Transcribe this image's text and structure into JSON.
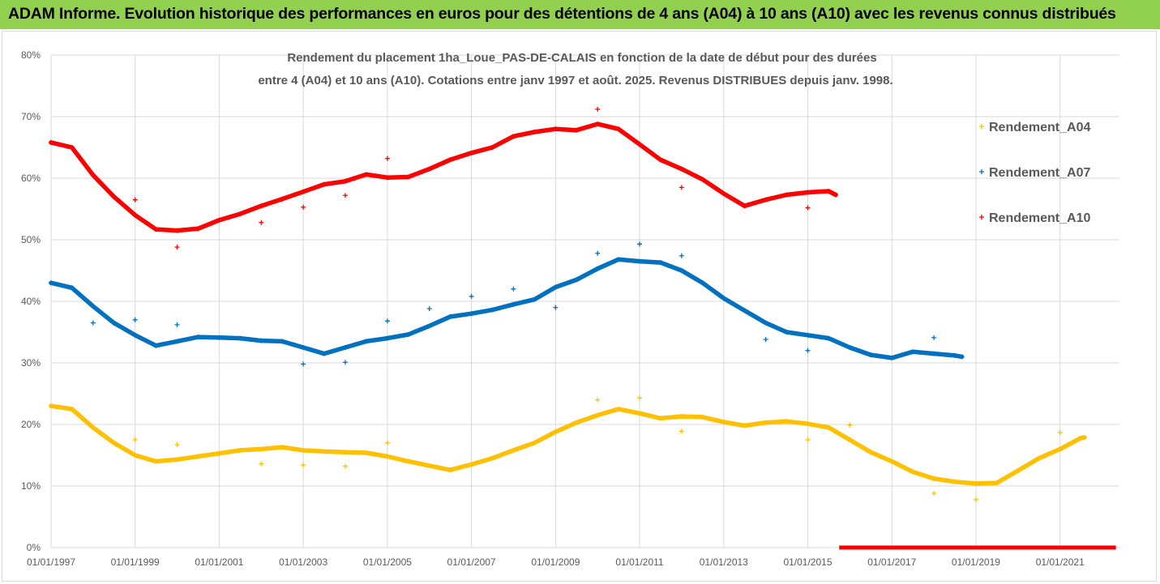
{
  "header": {
    "title": "ADAM Informe. Evolution historique des performances en euros pour des détentions de 4 ans (A04) à 10 ans (A10) avec les revenus connus distribués"
  },
  "chart_data": {
    "type": "scatter",
    "title_lines": [
      "Rendement du placement 1ha_Loue_PAS-DE-CALAIS en fonction de la date de début pour des durées",
      "entre 4 (A04) et 10 ans (A10). Cotations entre janv 1997 et août. 2025. Revenus DISTRIBUES depuis janv. 1998."
    ],
    "xlabel": "",
    "ylabel": "",
    "x_start": "1997-01-01",
    "x_end": "2022-06-01",
    "xticks": [
      "01/01/1997",
      "01/01/1999",
      "01/01/2001",
      "01/01/2003",
      "01/01/2005",
      "01/01/2007",
      "01/01/2009",
      "01/01/2011",
      "01/01/2013",
      "01/01/2015",
      "01/01/2017",
      "01/01/2019",
      "01/01/2021"
    ],
    "yticks": [
      "0%",
      "10%",
      "20%",
      "30%",
      "40%",
      "50%",
      "60%",
      "70%",
      "80%"
    ],
    "ylim": [
      0,
      80
    ],
    "grid": true,
    "legend_position": "right",
    "series": [
      {
        "name": "Rendement_A04",
        "color": "#ffc000",
        "points": [
          [
            "1997-01",
            23
          ],
          [
            "1997-07",
            22.5
          ],
          [
            "1998-01",
            19.5
          ],
          [
            "1998-07",
            17
          ],
          [
            "1999-01",
            15
          ],
          [
            "1999-07",
            14
          ],
          [
            "2000-01",
            14.3
          ],
          [
            "2000-07",
            14.8
          ],
          [
            "2001-01",
            15.3
          ],
          [
            "2001-07",
            15.8
          ],
          [
            "2002-01",
            16
          ],
          [
            "2002-07",
            16.3
          ],
          [
            "2003-01",
            15.8
          ],
          [
            "2003-07",
            15.6
          ],
          [
            "2004-01",
            15.5
          ],
          [
            "2004-07",
            15.4
          ],
          [
            "2005-01",
            14.8
          ],
          [
            "2005-07",
            14
          ],
          [
            "2006-01",
            13.3
          ],
          [
            "2006-07",
            12.6
          ],
          [
            "2007-01",
            13.5
          ],
          [
            "2007-07",
            14.5
          ],
          [
            "2008-01",
            15.8
          ],
          [
            "2008-07",
            17
          ],
          [
            "2009-01",
            18.8
          ],
          [
            "2009-07",
            20.3
          ],
          [
            "2010-01",
            21.5
          ],
          [
            "2010-07",
            22.5
          ],
          [
            "2011-01",
            21.8
          ],
          [
            "2011-07",
            21
          ],
          [
            "2012-01",
            21.3
          ],
          [
            "2012-07",
            21.2
          ],
          [
            "2013-01",
            20.4
          ],
          [
            "2013-07",
            19.8
          ],
          [
            "2014-01",
            20.3
          ],
          [
            "2014-07",
            20.5
          ],
          [
            "2015-01",
            20.1
          ],
          [
            "2015-07",
            19.5
          ],
          [
            "2016-01",
            17.5
          ],
          [
            "2016-07",
            15.5
          ],
          [
            "2017-01",
            14
          ],
          [
            "2017-07",
            12.3
          ],
          [
            "2018-01",
            11.2
          ],
          [
            "2018-07",
            10.7
          ],
          [
            "2019-01",
            10.4
          ],
          [
            "2019-07",
            10.5
          ],
          [
            "2020-01",
            12.5
          ],
          [
            "2020-07",
            14.5
          ],
          [
            "2021-01",
            16
          ],
          [
            "2021-07",
            17.8
          ],
          [
            "2021-08",
            17.9
          ]
        ],
        "outliers": [
          [
            "1999-01",
            17.5
          ],
          [
            "2000-01",
            16.7
          ],
          [
            "2002-01",
            13.6
          ],
          [
            "2003-01",
            13.4
          ],
          [
            "2004-01",
            13.2
          ],
          [
            "2005-01",
            17
          ],
          [
            "2010-01",
            24
          ],
          [
            "2011-01",
            24.3
          ],
          [
            "2012-01",
            18.9
          ],
          [
            "2015-01",
            17.5
          ],
          [
            "2016-01",
            19.9
          ],
          [
            "2018-01",
            8.8
          ],
          [
            "2019-01",
            7.8
          ],
          [
            "2021-01",
            18.7
          ]
        ]
      },
      {
        "name": "Rendement_A07",
        "color": "#0070c0",
        "points": [
          [
            "1997-01",
            43
          ],
          [
            "1997-07",
            42.2
          ],
          [
            "1998-01",
            39.2
          ],
          [
            "1998-07",
            36.5
          ],
          [
            "1999-01",
            34.5
          ],
          [
            "1999-07",
            32.8
          ],
          [
            "2000-01",
            33.5
          ],
          [
            "2000-07",
            34.2
          ],
          [
            "2001-01",
            34.1
          ],
          [
            "2001-07",
            34
          ],
          [
            "2002-01",
            33.6
          ],
          [
            "2002-07",
            33.5
          ],
          [
            "2003-01",
            32.5
          ],
          [
            "2003-07",
            31.5
          ],
          [
            "2004-01",
            32.5
          ],
          [
            "2004-07",
            33.5
          ],
          [
            "2005-01",
            34
          ],
          [
            "2005-07",
            34.6
          ],
          [
            "2006-01",
            36
          ],
          [
            "2006-07",
            37.5
          ],
          [
            "2007-01",
            38
          ],
          [
            "2007-07",
            38.6
          ],
          [
            "2008-01",
            39.5
          ],
          [
            "2008-07",
            40.3
          ],
          [
            "2009-01",
            42.3
          ],
          [
            "2009-07",
            43.5
          ],
          [
            "2010-01",
            45.3
          ],
          [
            "2010-07",
            46.8
          ],
          [
            "2011-01",
            46.5
          ],
          [
            "2011-07",
            46.3
          ],
          [
            "2012-01",
            45
          ],
          [
            "2012-07",
            43
          ],
          [
            "2013-01",
            40.5
          ],
          [
            "2013-07",
            38.5
          ],
          [
            "2014-01",
            36.5
          ],
          [
            "2014-07",
            35
          ],
          [
            "2015-01",
            34.5
          ],
          [
            "2015-07",
            34
          ],
          [
            "2016-01",
            32.5
          ],
          [
            "2016-07",
            31.3
          ],
          [
            "2017-01",
            30.8
          ],
          [
            "2017-07",
            31.8
          ],
          [
            "2018-01",
            31.5
          ],
          [
            "2018-07",
            31.2
          ],
          [
            "2018-09",
            31
          ]
        ],
        "outliers": [
          [
            "1998-01",
            36.5
          ],
          [
            "1999-01",
            37
          ],
          [
            "2000-01",
            36.2
          ],
          [
            "2003-01",
            29.8
          ],
          [
            "2004-01",
            30.1
          ],
          [
            "2005-01",
            36.8
          ],
          [
            "2006-01",
            38.8
          ],
          [
            "2007-01",
            40.8
          ],
          [
            "2008-01",
            42
          ],
          [
            "2009-01",
            39
          ],
          [
            "2010-01",
            47.8
          ],
          [
            "2011-01",
            49.3
          ],
          [
            "2012-01",
            47.4
          ],
          [
            "2014-01",
            33.8
          ],
          [
            "2015-01",
            32
          ],
          [
            "2018-01",
            34.1
          ]
        ]
      },
      {
        "name": "Rendement_A10",
        "color": "#ff0000",
        "points": [
          [
            "1997-01",
            65.8
          ],
          [
            "1997-07",
            65
          ],
          [
            "1998-01",
            60.5
          ],
          [
            "1998-07",
            57
          ],
          [
            "1999-01",
            54
          ],
          [
            "1999-07",
            51.7
          ],
          [
            "2000-01",
            51.5
          ],
          [
            "2000-07",
            51.8
          ],
          [
            "2001-01",
            53.2
          ],
          [
            "2001-07",
            54.2
          ],
          [
            "2002-01",
            55.5
          ],
          [
            "2002-07",
            56.6
          ],
          [
            "2003-01",
            57.8
          ],
          [
            "2003-07",
            59
          ],
          [
            "2004-01",
            59.5
          ],
          [
            "2004-07",
            60.6
          ],
          [
            "2005-01",
            60.1
          ],
          [
            "2005-07",
            60.2
          ],
          [
            "2006-01",
            61.5
          ],
          [
            "2006-07",
            63
          ],
          [
            "2007-01",
            64.1
          ],
          [
            "2007-07",
            65
          ],
          [
            "2008-01",
            66.8
          ],
          [
            "2008-07",
            67.5
          ],
          [
            "2009-01",
            68
          ],
          [
            "2009-07",
            67.8
          ],
          [
            "2010-01",
            68.8
          ],
          [
            "2010-07",
            68
          ],
          [
            "2011-01",
            65.5
          ],
          [
            "2011-07",
            63
          ],
          [
            "2012-01",
            61.5
          ],
          [
            "2012-07",
            59.8
          ],
          [
            "2013-01",
            57.5
          ],
          [
            "2013-07",
            55.5
          ],
          [
            "2014-01",
            56.5
          ],
          [
            "2014-07",
            57.3
          ],
          [
            "2015-01",
            57.7
          ],
          [
            "2015-07",
            57.9
          ],
          [
            "2015-09",
            57.3
          ]
        ],
        "outliers": [
          [
            "1999-01",
            56.5
          ],
          [
            "2000-01",
            48.8
          ],
          [
            "2002-01",
            52.8
          ],
          [
            "2003-01",
            55.3
          ],
          [
            "2004-01",
            57.2
          ],
          [
            "2005-01",
            63.2
          ],
          [
            "2010-01",
            71.2
          ],
          [
            "2012-01",
            58.5
          ],
          [
            "2015-01",
            55.2
          ]
        ],
        "zero_range": [
          "2015-10",
          "2022-05"
        ]
      }
    ]
  }
}
